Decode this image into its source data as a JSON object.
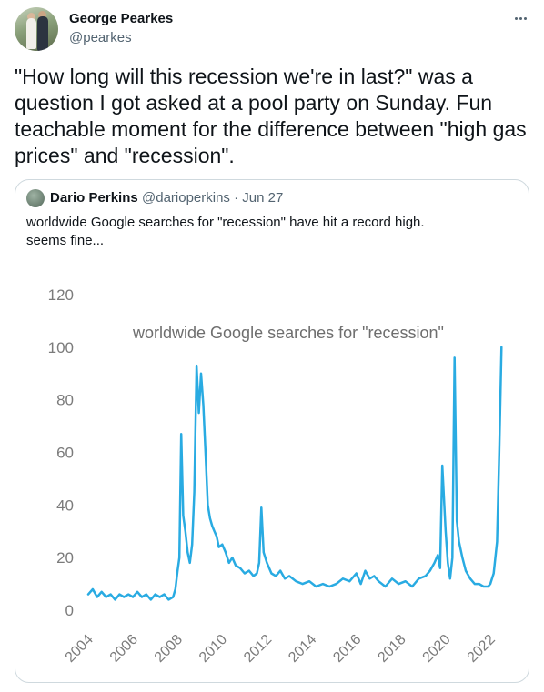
{
  "tweet": {
    "author": {
      "name": "George Pearkes",
      "handle": "@pearkes"
    },
    "text": "\"How long will this recession we're in last?\" was a question I got asked at a pool party on Sunday. Fun teachable moment for the difference between \"high gas prices\" and \"recession\".",
    "more_icon": "more-horizontal-icon"
  },
  "quote": {
    "author": {
      "name": "Dario Perkins",
      "handle": "@darioperkins",
      "date": "Jun 27"
    },
    "separator": "·",
    "text_line1": "worldwide Google searches for \"recession\" have hit a record high.",
    "text_line2": "seems fine..."
  },
  "chart_data": {
    "type": "line",
    "title": "worldwide Google searches for \"recession\"",
    "xlabel": "",
    "ylabel": "",
    "ylim": [
      0,
      120
    ],
    "xlim": [
      2004,
      2022.6
    ],
    "yticks": [
      0,
      20,
      40,
      60,
      80,
      100,
      120
    ],
    "xticks": [
      2004,
      2006,
      2008,
      2010,
      2012,
      2014,
      2016,
      2018,
      2020,
      2022
    ],
    "grid": false,
    "color": "#29abe2",
    "series": [
      {
        "x": [
          2004.0,
          2004.2,
          2004.4,
          2004.6,
          2004.8,
          2005.0,
          2005.2,
          2005.4,
          2005.6,
          2005.8,
          2006.0,
          2006.2,
          2006.4,
          2006.6,
          2006.8,
          2007.0,
          2007.2,
          2007.4,
          2007.6,
          2007.8,
          2007.9,
          2008.0,
          2008.08,
          2008.16,
          2008.25,
          2008.35,
          2008.45,
          2008.55,
          2008.65,
          2008.75,
          2008.85,
          2008.95,
          2009.05,
          2009.15,
          2009.25,
          2009.35,
          2009.45,
          2009.55,
          2009.65,
          2009.75,
          2009.85,
          2010.0,
          2010.15,
          2010.3,
          2010.45,
          2010.6,
          2010.8,
          2011.0,
          2011.2,
          2011.4,
          2011.55,
          2011.65,
          2011.75,
          2011.85,
          2012.0,
          2012.2,
          2012.4,
          2012.6,
          2012.8,
          2013.0,
          2013.3,
          2013.6,
          2013.9,
          2014.2,
          2014.5,
          2014.8,
          2015.1,
          2015.4,
          2015.7,
          2016.0,
          2016.2,
          2016.4,
          2016.6,
          2016.8,
          2017.0,
          2017.3,
          2017.6,
          2017.9,
          2018.2,
          2018.5,
          2018.8,
          2019.1,
          2019.3,
          2019.5,
          2019.65,
          2019.75,
          2019.85,
          2020.0,
          2020.1,
          2020.2,
          2020.3,
          2020.4,
          2020.5,
          2020.6,
          2020.75,
          2020.9,
          2021.1,
          2021.3,
          2021.5,
          2021.7,
          2021.9,
          2022.0,
          2022.15,
          2022.3,
          2022.4,
          2022.5
        ],
        "values": [
          6,
          8,
          5,
          7,
          5,
          6,
          4,
          6,
          5,
          6,
          5,
          7,
          5,
          6,
          4,
          6,
          5,
          6,
          4,
          5,
          8,
          15,
          20,
          67,
          36,
          30,
          22,
          18,
          25,
          45,
          93,
          75,
          90,
          78,
          60,
          40,
          35,
          32,
          30,
          28,
          24,
          25,
          22,
          18,
          20,
          17,
          16,
          14,
          15,
          13,
          14,
          18,
          39,
          22,
          18,
          14,
          13,
          15,
          12,
          13,
          11,
          10,
          11,
          9,
          10,
          9,
          10,
          12,
          11,
          14,
          10,
          15,
          12,
          13,
          11,
          9,
          12,
          10,
          11,
          9,
          12,
          13,
          15,
          18,
          21,
          16,
          55,
          30,
          18,
          12,
          20,
          96,
          34,
          26,
          20,
          15,
          12,
          10,
          10,
          9,
          9,
          10,
          14,
          26,
          60,
          100
        ]
      }
    ]
  }
}
